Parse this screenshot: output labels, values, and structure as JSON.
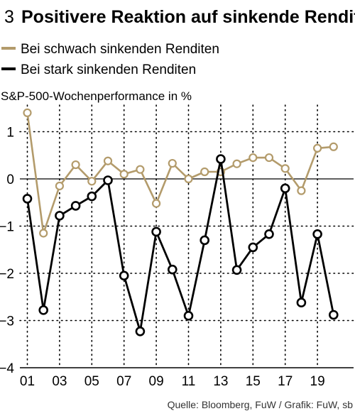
{
  "figure": {
    "number": "3",
    "title": "Positivere Reaktion auf sinkende Renditen",
    "source": "Quelle: Bloomberg, FuW / Grafik: FuW, sb"
  },
  "colors": {
    "weak": "#b39b6b",
    "strong": "#000000",
    "grid": "#000000"
  },
  "chart_data": {
    "type": "line",
    "title": "Positivere Reaktion auf sinkende Renditen",
    "ylabel": "S&P-500-Wochenperformance in %",
    "xlabel": "",
    "x": [
      "01",
      "02",
      "03",
      "04",
      "05",
      "06",
      "07",
      "08",
      "09",
      "10",
      "11",
      "12",
      "13",
      "14",
      "15",
      "16",
      "17",
      "18",
      "19",
      "20"
    ],
    "x_tick_labels": [
      "01",
      "03",
      "05",
      "07",
      "09",
      "11",
      "13",
      "15",
      "17",
      "19"
    ],
    "ylim": [
      -4,
      1.5
    ],
    "yticks": [
      1,
      0,
      -1,
      -2,
      -3,
      -4
    ],
    "ytick_labels": [
      "1",
      "0",
      "−1",
      "−2",
      "−3",
      "−4"
    ],
    "grid": true,
    "legend_position": "top-left",
    "series": [
      {
        "name": "Bei schwach sinkenden Renditen",
        "color": "#b39b6b",
        "values": [
          1.4,
          -1.15,
          -0.15,
          0.3,
          -0.05,
          0.38,
          0.1,
          0.2,
          -0.52,
          0.33,
          0.0,
          0.15,
          0.15,
          0.32,
          0.45,
          0.45,
          0.22,
          -0.25,
          0.65,
          0.68
        ]
      },
      {
        "name": "Bei stark sinkenden Renditen",
        "color": "#000000",
        "values": [
          -0.42,
          -2.78,
          -0.78,
          -0.57,
          -0.37,
          -0.03,
          -2.05,
          -3.23,
          -1.12,
          -1.92,
          -2.9,
          -1.3,
          0.42,
          -1.93,
          -1.45,
          -1.17,
          -0.2,
          -2.62,
          -1.17,
          -2.88
        ]
      }
    ]
  }
}
